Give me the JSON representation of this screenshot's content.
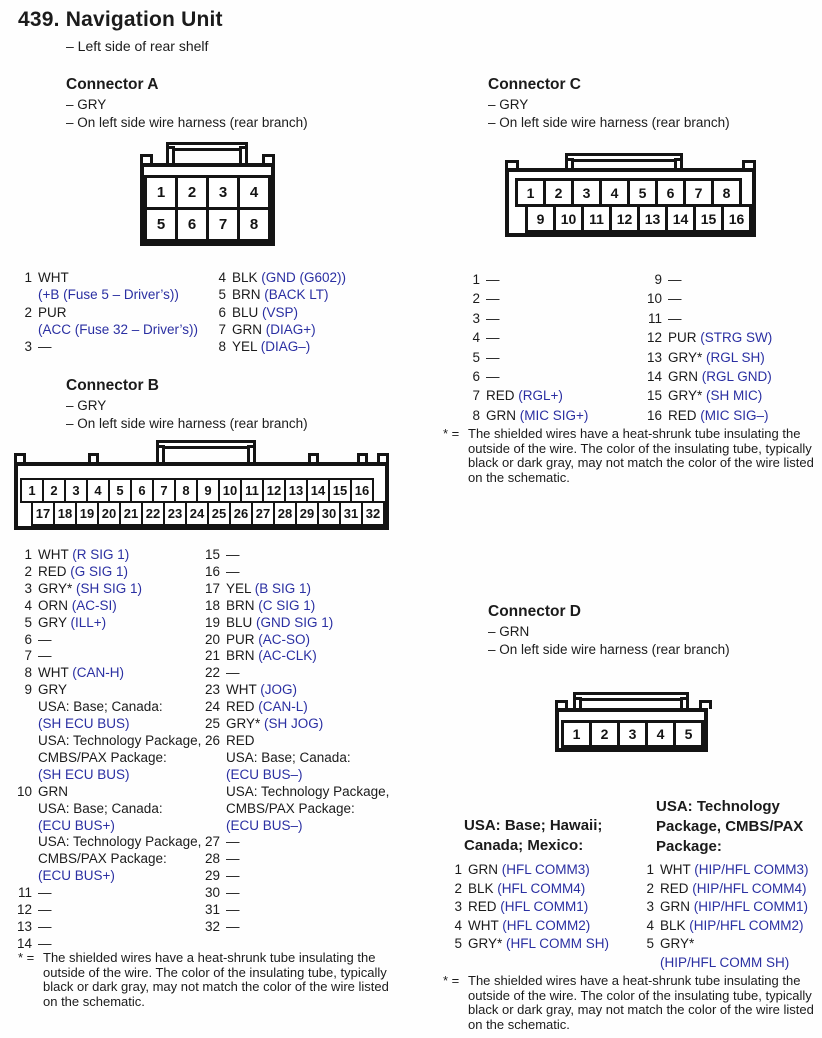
{
  "page": {
    "title": "439. Navigation Unit",
    "subtitle": "– Left side of rear shelf"
  },
  "colors": {
    "signal_blue": "#2a2fa2",
    "ink": "#1b1b1b"
  },
  "footnote": {
    "star": "* =",
    "lines": [
      "The shielded wires have a heat-shrunk tube insulating the",
      "outside of the wire. The color of the insulating tube, typically",
      "black or dark gray, may not match the color of the wire listed",
      "on the schematic."
    ]
  },
  "connectors": {
    "a": {
      "name": "Connector A",
      "notes": [
        "– GRY",
        "– On left side wire harness (rear branch)"
      ],
      "diagram": [
        [
          "1",
          "2",
          "3",
          "4"
        ],
        [
          "5",
          "6",
          "7",
          "8"
        ]
      ],
      "pins_left": [
        {
          "num": "1",
          "lines": [
            [
              {
                "t": "WHT"
              }
            ],
            [
              {
                "t": "(+B (Fuse 5 – Driver’s))",
                "b": 1
              }
            ]
          ]
        },
        {
          "num": "2",
          "lines": [
            [
              {
                "t": "PUR"
              }
            ],
            [
              {
                "t": "(ACC (Fuse 32 – Driver’s))",
                "b": 1
              }
            ]
          ]
        },
        {
          "num": "3",
          "lines": [
            [
              {
                "t": "—"
              }
            ]
          ]
        }
      ],
      "pins_right": [
        {
          "num": "4",
          "lines": [
            [
              {
                "t": "BLK "
              },
              {
                "t": "(GND (G602))",
                "b": 1
              }
            ]
          ]
        },
        {
          "num": "5",
          "lines": [
            [
              {
                "t": "BRN "
              },
              {
                "t": "(BACK LT)",
                "b": 1
              }
            ]
          ]
        },
        {
          "num": "6",
          "lines": [
            [
              {
                "t": "BLU "
              },
              {
                "t": "(VSP)",
                "b": 1
              }
            ]
          ]
        },
        {
          "num": "7",
          "lines": [
            [
              {
                "t": "GRN "
              },
              {
                "t": "(DIAG+)",
                "b": 1
              }
            ]
          ]
        },
        {
          "num": "8",
          "lines": [
            [
              {
                "t": "YEL "
              },
              {
                "t": "(DIAG–)",
                "b": 1
              }
            ]
          ]
        }
      ]
    },
    "b": {
      "name": "Connector B",
      "notes": [
        "– GRY",
        "– On left side wire harness (rear branch)"
      ],
      "diagram": [
        [
          "1",
          "2",
          "3",
          "4",
          "5",
          "6",
          "7",
          "8",
          "9",
          "10",
          "11",
          "12",
          "13",
          "14",
          "15",
          "16"
        ],
        [
          "17",
          "18",
          "19",
          "20",
          "21",
          "22",
          "23",
          "24",
          "25",
          "26",
          "27",
          "28",
          "29",
          "30",
          "31",
          "32"
        ]
      ],
      "pins_left": [
        {
          "num": "1",
          "lines": [
            [
              {
                "t": "WHT "
              },
              {
                "t": "(R SIG 1)",
                "b": 1
              }
            ]
          ]
        },
        {
          "num": "2",
          "lines": [
            [
              {
                "t": "RED "
              },
              {
                "t": "(G SIG 1)",
                "b": 1
              }
            ]
          ]
        },
        {
          "num": "3",
          "lines": [
            [
              {
                "t": "GRY* "
              },
              {
                "t": "(SH SIG 1)",
                "b": 1
              }
            ]
          ]
        },
        {
          "num": "4",
          "lines": [
            [
              {
                "t": "ORN "
              },
              {
                "t": "(AC-SI)",
                "b": 1
              }
            ]
          ]
        },
        {
          "num": "5",
          "lines": [
            [
              {
                "t": "GRY "
              },
              {
                "t": "(ILL+)",
                "b": 1
              }
            ]
          ]
        },
        {
          "num": "6",
          "lines": [
            [
              {
                "t": "—"
              }
            ]
          ]
        },
        {
          "num": "7",
          "lines": [
            [
              {
                "t": "—"
              }
            ]
          ]
        },
        {
          "num": "8",
          "lines": [
            [
              {
                "t": "WHT "
              },
              {
                "t": "(CAN-H)",
                "b": 1
              }
            ]
          ]
        },
        {
          "num": "9",
          "lines": [
            [
              {
                "t": "GRY"
              }
            ],
            [
              {
                "t": "USA: Base; Canada:"
              }
            ],
            [
              {
                "t": "(SH ECU BUS)",
                "b": 1
              }
            ],
            [
              {
                "t": "USA: Technology Package,"
              }
            ],
            [
              {
                "t": "CMBS/PAX Package:"
              }
            ],
            [
              {
                "t": "(SH ECU BUS)",
                "b": 1
              }
            ]
          ]
        },
        {
          "num": "10",
          "lines": [
            [
              {
                "t": "GRN"
              }
            ],
            [
              {
                "t": "USA: Base; Canada:"
              }
            ],
            [
              {
                "t": "(ECU BUS+)",
                "b": 1
              }
            ],
            [
              {
                "t": "USA: Technology Package,"
              }
            ],
            [
              {
                "t": "CMBS/PAX Package:"
              }
            ],
            [
              {
                "t": "(ECU BUS+)",
                "b": 1
              }
            ]
          ]
        },
        {
          "num": "11",
          "lines": [
            [
              {
                "t": "—"
              }
            ]
          ]
        },
        {
          "num": "12",
          "lines": [
            [
              {
                "t": "—"
              }
            ]
          ]
        },
        {
          "num": "13",
          "lines": [
            [
              {
                "t": "—"
              }
            ]
          ]
        },
        {
          "num": "14",
          "lines": [
            [
              {
                "t": "—"
              }
            ]
          ]
        }
      ],
      "pins_right": [
        {
          "num": "15",
          "lines": [
            [
              {
                "t": "—"
              }
            ]
          ]
        },
        {
          "num": "16",
          "lines": [
            [
              {
                "t": "—"
              }
            ]
          ]
        },
        {
          "num": "17",
          "lines": [
            [
              {
                "t": "YEL "
              },
              {
                "t": "(B SIG 1)",
                "b": 1
              }
            ]
          ]
        },
        {
          "num": "18",
          "lines": [
            [
              {
                "t": "BRN "
              },
              {
                "t": "(C SIG 1)",
                "b": 1
              }
            ]
          ]
        },
        {
          "num": "19",
          "lines": [
            [
              {
                "t": "BLU "
              },
              {
                "t": "(GND SIG 1)",
                "b": 1
              }
            ]
          ]
        },
        {
          "num": "20",
          "lines": [
            [
              {
                "t": "PUR "
              },
              {
                "t": "(AC-SO)",
                "b": 1
              }
            ]
          ]
        },
        {
          "num": "21",
          "lines": [
            [
              {
                "t": "BRN "
              },
              {
                "t": "(AC-CLK)",
                "b": 1
              }
            ]
          ]
        },
        {
          "num": "22",
          "lines": [
            [
              {
                "t": "—"
              }
            ]
          ]
        },
        {
          "num": "23",
          "lines": [
            [
              {
                "t": "WHT "
              },
              {
                "t": "(JOG)",
                "b": 1
              }
            ]
          ]
        },
        {
          "num": "24",
          "lines": [
            [
              {
                "t": "RED "
              },
              {
                "t": "(CAN-L)",
                "b": 1
              }
            ]
          ]
        },
        {
          "num": "25",
          "lines": [
            [
              {
                "t": "GRY* "
              },
              {
                "t": "(SH JOG)",
                "b": 1
              }
            ]
          ]
        },
        {
          "num": "26",
          "lines": [
            [
              {
                "t": "RED"
              }
            ],
            [
              {
                "t": "USA: Base; Canada:"
              }
            ],
            [
              {
                "t": "(ECU BUS–)",
                "b": 1
              }
            ],
            [
              {
                "t": "USA: Technology Package,"
              }
            ],
            [
              {
                "t": "CMBS/PAX Package:"
              }
            ],
            [
              {
                "t": "(ECU BUS–)",
                "b": 1
              }
            ]
          ]
        },
        {
          "num": "27",
          "lines": [
            [
              {
                "t": "—"
              }
            ]
          ]
        },
        {
          "num": "28",
          "lines": [
            [
              {
                "t": "—"
              }
            ]
          ]
        },
        {
          "num": "29",
          "lines": [
            [
              {
                "t": "—"
              }
            ]
          ]
        },
        {
          "num": "30",
          "lines": [
            [
              {
                "t": "—"
              }
            ]
          ]
        },
        {
          "num": "31",
          "lines": [
            [
              {
                "t": "—"
              }
            ]
          ]
        },
        {
          "num": "32",
          "lines": [
            [
              {
                "t": "—"
              }
            ]
          ]
        }
      ]
    },
    "c": {
      "name": "Connector C",
      "notes": [
        "– GRY",
        "– On left side wire harness (rear branch)"
      ],
      "diagram": [
        [
          "1",
          "2",
          "3",
          "4",
          "5",
          "6",
          "7",
          "8"
        ],
        [
          "9",
          "10",
          "11",
          "12",
          "13",
          "14",
          "15",
          "16"
        ]
      ],
      "pins_left": [
        {
          "num": "1",
          "lines": [
            [
              {
                "t": "—"
              }
            ]
          ]
        },
        {
          "num": "2",
          "lines": [
            [
              {
                "t": "—"
              }
            ]
          ]
        },
        {
          "num": "3",
          "lines": [
            [
              {
                "t": "—"
              }
            ]
          ]
        },
        {
          "num": "4",
          "lines": [
            [
              {
                "t": "—"
              }
            ]
          ]
        },
        {
          "num": "5",
          "lines": [
            [
              {
                "t": "—"
              }
            ]
          ]
        },
        {
          "num": "6",
          "lines": [
            [
              {
                "t": "—"
              }
            ]
          ]
        },
        {
          "num": "7",
          "lines": [
            [
              {
                "t": "RED "
              },
              {
                "t": "(RGL+)",
                "b": 1
              }
            ]
          ]
        },
        {
          "num": "8",
          "lines": [
            [
              {
                "t": "GRN "
              },
              {
                "t": "(MIC SIG+)",
                "b": 1
              }
            ]
          ]
        }
      ],
      "pins_right": [
        {
          "num": "9",
          "lines": [
            [
              {
                "t": "—"
              }
            ]
          ]
        },
        {
          "num": "10",
          "lines": [
            [
              {
                "t": "—"
              }
            ]
          ]
        },
        {
          "num": "11",
          "lines": [
            [
              {
                "t": "—"
              }
            ]
          ]
        },
        {
          "num": "12",
          "lines": [
            [
              {
                "t": "PUR "
              },
              {
                "t": "(STRG SW)",
                "b": 1
              }
            ]
          ]
        },
        {
          "num": "13",
          "lines": [
            [
              {
                "t": "GRY* "
              },
              {
                "t": "(RGL SH)",
                "b": 1
              }
            ]
          ]
        },
        {
          "num": "14",
          "lines": [
            [
              {
                "t": "GRN "
              },
              {
                "t": "(RGL GND)",
                "b": 1
              }
            ]
          ]
        },
        {
          "num": "15",
          "lines": [
            [
              {
                "t": "GRY* "
              },
              {
                "t": "(SH MIC)",
                "b": 1
              }
            ]
          ]
        },
        {
          "num": "16",
          "lines": [
            [
              {
                "t": "RED "
              },
              {
                "t": "(MIC SIG–)",
                "b": 1
              }
            ]
          ]
        }
      ]
    },
    "d": {
      "name": "Connector D",
      "notes": [
        "– GRN",
        "– On left side wire harness (rear branch)"
      ],
      "diagram": [
        [
          "1",
          "2",
          "3",
          "4",
          "5"
        ]
      ],
      "variants": [
        {
          "heading": [
            "USA: Base; Hawaii;",
            "Canada; Mexico:"
          ],
          "pins": [
            {
              "num": "1",
              "lines": [
                [
                  {
                    "t": "GRN "
                  },
                  {
                    "t": "(HFL COMM3)",
                    "b": 1
                  }
                ]
              ]
            },
            {
              "num": "2",
              "lines": [
                [
                  {
                    "t": "BLK "
                  },
                  {
                    "t": "(HFL COMM4)",
                    "b": 1
                  }
                ]
              ]
            },
            {
              "num": "3",
              "lines": [
                [
                  {
                    "t": "RED "
                  },
                  {
                    "t": "(HFL COMM1)",
                    "b": 1
                  }
                ]
              ]
            },
            {
              "num": "4",
              "lines": [
                [
                  {
                    "t": "WHT "
                  },
                  {
                    "t": "(HFL COMM2)",
                    "b": 1
                  }
                ]
              ]
            },
            {
              "num": "5",
              "lines": [
                [
                  {
                    "t": "GRY* "
                  },
                  {
                    "t": "(HFL COMM SH)",
                    "b": 1
                  }
                ]
              ]
            }
          ]
        },
        {
          "heading": [
            "USA: Technology",
            "Package, CMBS/PAX",
            "Package:"
          ],
          "pins": [
            {
              "num": "1",
              "lines": [
                [
                  {
                    "t": "WHT "
                  },
                  {
                    "t": "(HIP/HFL COMM3)",
                    "b": 1
                  }
                ]
              ]
            },
            {
              "num": "2",
              "lines": [
                [
                  {
                    "t": "RED "
                  },
                  {
                    "t": "(HIP/HFL COMM4)",
                    "b": 1
                  }
                ]
              ]
            },
            {
              "num": "3",
              "lines": [
                [
                  {
                    "t": "GRN "
                  },
                  {
                    "t": "(HIP/HFL COMM1)",
                    "b": 1
                  }
                ]
              ]
            },
            {
              "num": "4",
              "lines": [
                [
                  {
                    "t": "BLK "
                  },
                  {
                    "t": "(HIP/HFL COMM2)",
                    "b": 1
                  }
                ]
              ]
            },
            {
              "num": "5",
              "lines": [
                [
                  {
                    "t": "GRY*"
                  }
                ],
                [
                  {
                    "t": "(HIP/HFL COMM SH)",
                    "b": 1
                  }
                ]
              ]
            }
          ]
        }
      ]
    }
  }
}
